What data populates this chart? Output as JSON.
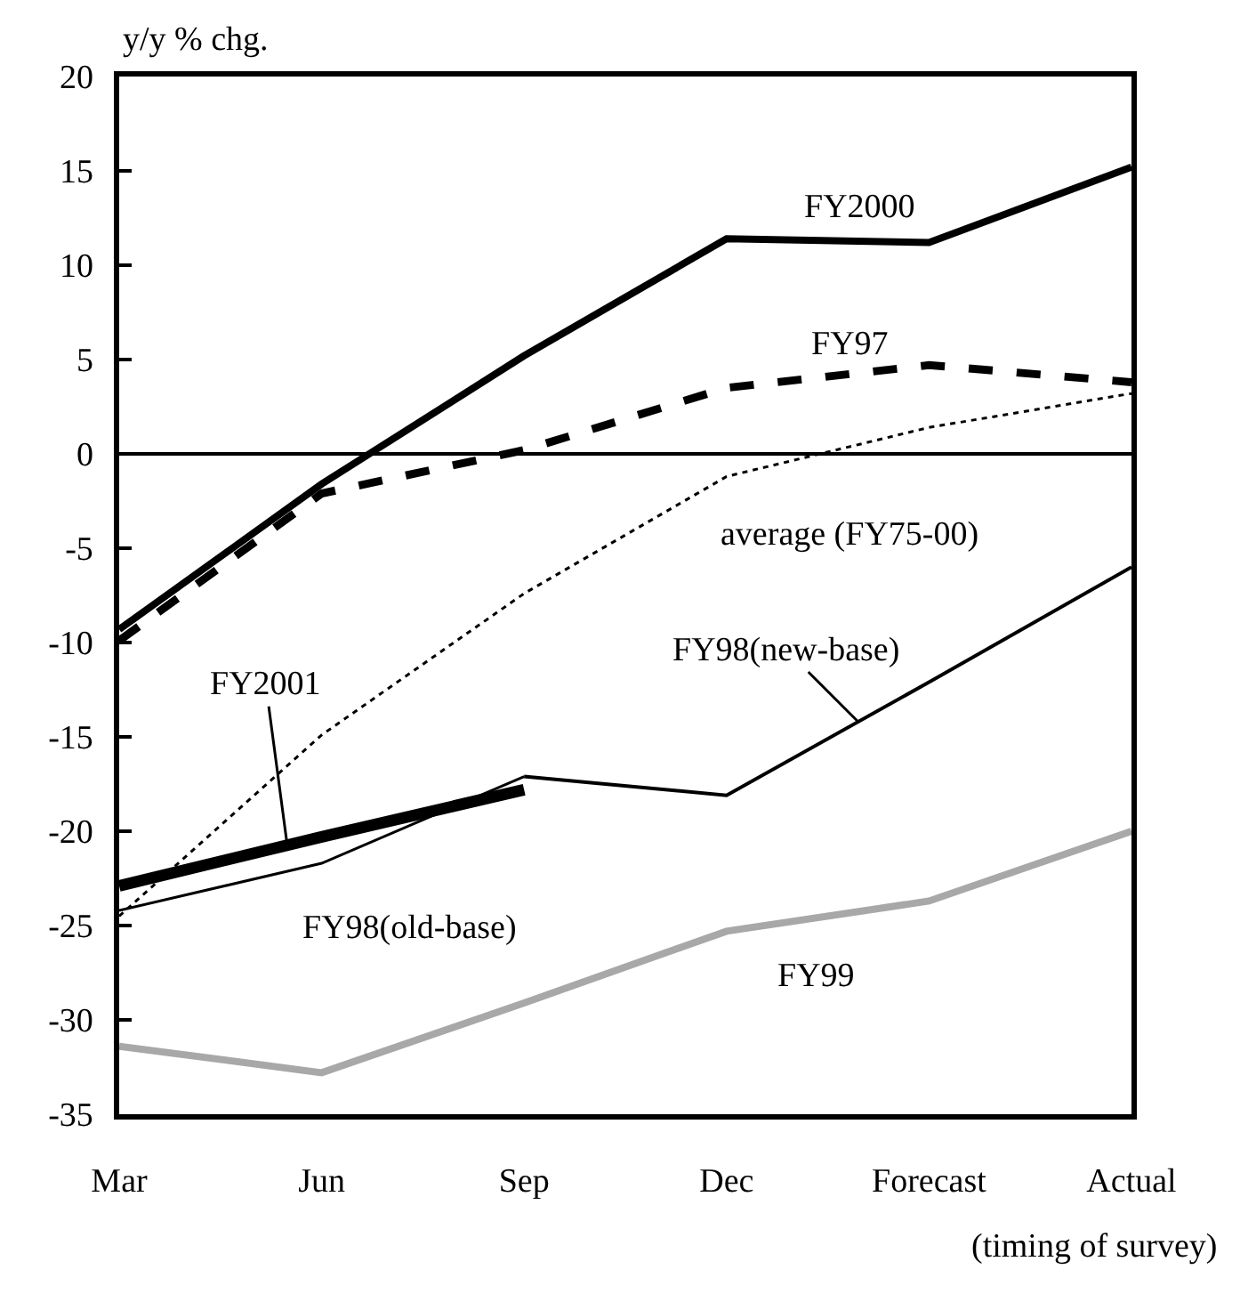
{
  "chart_data": {
    "type": "line",
    "ylabel": "y/y % chg.",
    "xlabel": "(timing of survey)",
    "categories": [
      "Mar",
      "Jun",
      "Sep",
      "Dec",
      "Forecast",
      "Actual"
    ],
    "ylim": [
      -35,
      20
    ],
    "yticks": [
      -35,
      -30,
      -25,
      -20,
      -15,
      -10,
      -5,
      0,
      5,
      10,
      15,
      20
    ],
    "legend": false,
    "marker": "none",
    "ref_lines": [
      {
        "axis": "y",
        "value": 0,
        "color": "#000000"
      }
    ],
    "series": [
      {
        "name": "FY2000",
        "color": "#000000",
        "line_style": "solid",
        "values": [
          -9.3,
          -1.6,
          5.2,
          11.4,
          11.2,
          15.2
        ]
      },
      {
        "name": "FY97",
        "color": "#000000",
        "line_style": "dashed",
        "values": [
          -9.9,
          -2.1,
          0.2,
          3.5,
          4.7,
          3.8
        ]
      },
      {
        "name": "average (FY75-00)",
        "color": "#000000",
        "line_style": "dotted",
        "values": [
          -24.5,
          -14.9,
          -7.4,
          -1.2,
          1.4,
          3.2
        ]
      },
      {
        "name": "FY98(new-base)",
        "color": "#000000",
        "line_style": "solid",
        "values": [
          null,
          null,
          -17.1,
          -18.1,
          -12.1,
          -6.0
        ]
      },
      {
        "name": "FY2001",
        "color": "#000000",
        "line_style": "solid",
        "values": [
          -22.9,
          -20.3,
          -17.8,
          null,
          null,
          null
        ]
      },
      {
        "name": "FY98(old-base)",
        "color": "#000000",
        "line_style": "solid",
        "values": [
          -24.2,
          -21.7,
          -17.1,
          null,
          null,
          null
        ]
      },
      {
        "name": "FY99",
        "color": "#a8a8a8",
        "line_style": "solid",
        "values": [
          -31.4,
          -32.8,
          -29.1,
          -25.3,
          -23.7,
          -20.0
        ]
      }
    ]
  }
}
